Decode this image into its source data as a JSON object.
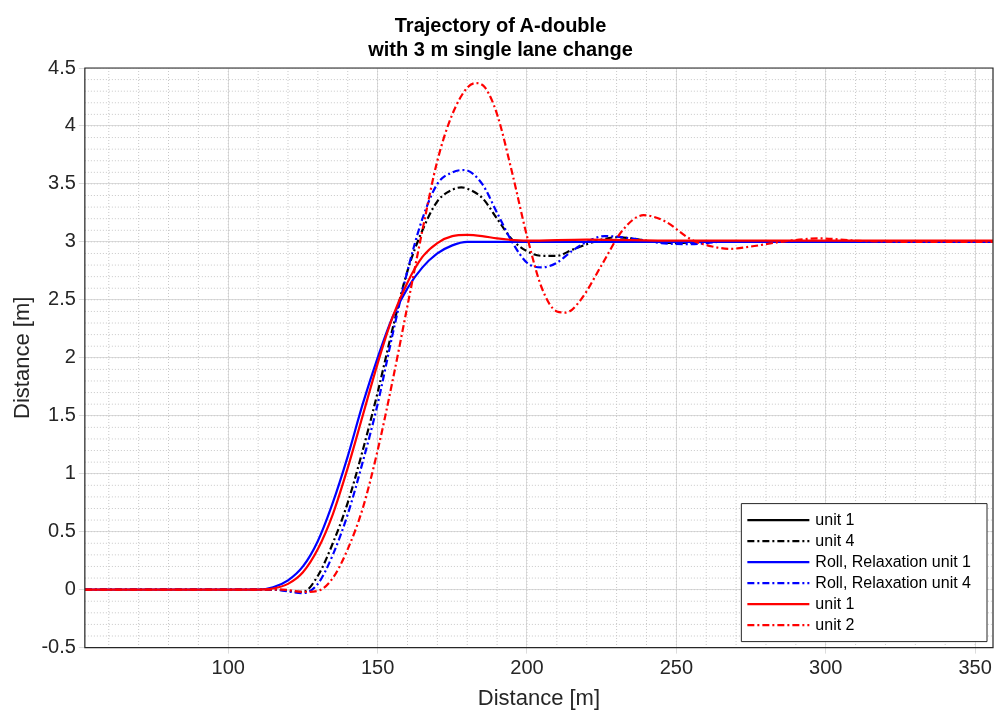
{
  "chart_data": {
    "type": "line",
    "title": "Trajectory of A-double\nwith 3 m single lane change",
    "xlabel": "Distance [m]",
    "ylabel": "Distance [m]",
    "xlim": [
      52,
      356
    ],
    "ylim": [
      -0.5,
      4.5
    ],
    "xticks": [
      100,
      150,
      200,
      250,
      300,
      350
    ],
    "yticks": [
      -0.5,
      0,
      0.5,
      1,
      1.5,
      2,
      2.5,
      3,
      3.5,
      4,
      4.5
    ],
    "grid": true,
    "legend": "bottom right",
    "series": [
      {
        "name": "unit 1",
        "color": "#000000",
        "line_style": "solid"
      },
      {
        "name": "unit 4",
        "color": "#000000",
        "line_style": "dashed",
        "x": [
          52,
          115,
          125,
          130,
          135,
          140,
          145,
          150,
          155,
          160,
          165,
          170,
          175,
          178,
          180,
          185,
          190,
          195,
          200,
          205,
          210,
          215,
          220,
          225,
          230,
          235,
          240,
          250,
          260,
          356
        ],
        "values": [
          0,
          0,
          -0.02,
          0.12,
          0.4,
          0.75,
          1.2,
          1.7,
          2.25,
          2.75,
          3.1,
          3.35,
          3.45,
          3.47,
          3.46,
          3.38,
          3.2,
          3.02,
          2.92,
          2.88,
          2.88,
          2.93,
          2.98,
          3.02,
          3.04,
          3.03,
          3.01,
          2.99,
          3.0,
          3.0
        ]
      },
      {
        "name": "Roll, Relaxation unit 1",
        "color": "#0000ff",
        "line_style": "solid",
        "x": [
          52,
          110,
          115,
          120,
          125,
          130,
          135,
          140,
          145,
          150,
          155,
          160,
          165,
          170,
          175,
          180,
          356
        ],
        "values": [
          0,
          0,
          0.02,
          0.08,
          0.2,
          0.42,
          0.75,
          1.15,
          1.6,
          2.0,
          2.35,
          2.6,
          2.78,
          2.9,
          2.97,
          3.0,
          3.0
        ]
      },
      {
        "name": "Roll, Relaxation unit 4",
        "color": "#0000ff",
        "line_style": "dashed",
        "x": [
          52,
          115,
          125,
          130,
          135,
          140,
          145,
          150,
          155,
          160,
          165,
          170,
          175,
          179,
          185,
          190,
          195,
          200,
          205,
          210,
          215,
          220,
          226,
          235,
          245,
          255,
          265,
          356
        ],
        "values": [
          0,
          0,
          -0.03,
          0.05,
          0.3,
          0.65,
          1.1,
          1.6,
          2.2,
          2.75,
          3.2,
          3.5,
          3.6,
          3.62,
          3.5,
          3.25,
          3.0,
          2.82,
          2.78,
          2.82,
          2.92,
          3.0,
          3.05,
          3.03,
          2.99,
          2.98,
          3.0,
          3.0
        ]
      },
      {
        "name": "unit 1",
        "color": "#ff0000",
        "line_style": "solid",
        "x": [
          52,
          110,
          115,
          120,
          125,
          130,
          135,
          140,
          145,
          150,
          155,
          160,
          165,
          170,
          175,
          180,
          185,
          190,
          200,
          220,
          250,
          300,
          356
        ],
        "values": [
          0,
          0,
          0.01,
          0.05,
          0.15,
          0.35,
          0.65,
          1.05,
          1.5,
          1.95,
          2.35,
          2.65,
          2.87,
          2.99,
          3.05,
          3.06,
          3.05,
          3.03,
          3.01,
          3.02,
          3.01,
          3.01,
          3.01
        ]
      },
      {
        "name": "unit 2",
        "color": "#ff0000",
        "line_style": "dashed",
        "x": [
          52,
          118,
          125,
          130,
          135,
          140,
          145,
          150,
          155,
          160,
          165,
          170,
          175,
          180,
          183,
          186,
          190,
          195,
          200,
          205,
          210,
          213,
          218,
          225,
          232,
          239,
          246,
          255,
          262,
          268,
          275,
          285,
          298,
          310,
          330,
          356
        ],
        "values": [
          0,
          0,
          -0.02,
          -0.01,
          0.1,
          0.35,
          0.7,
          1.2,
          1.8,
          2.45,
          3.1,
          3.7,
          4.1,
          4.33,
          4.37,
          4.33,
          4.1,
          3.6,
          3.05,
          2.6,
          2.4,
          2.39,
          2.5,
          2.8,
          3.1,
          3.23,
          3.18,
          3.02,
          2.96,
          2.94,
          2.96,
          3.0,
          3.03,
          3.01,
          3.0,
          3.0
        ]
      }
    ]
  }
}
